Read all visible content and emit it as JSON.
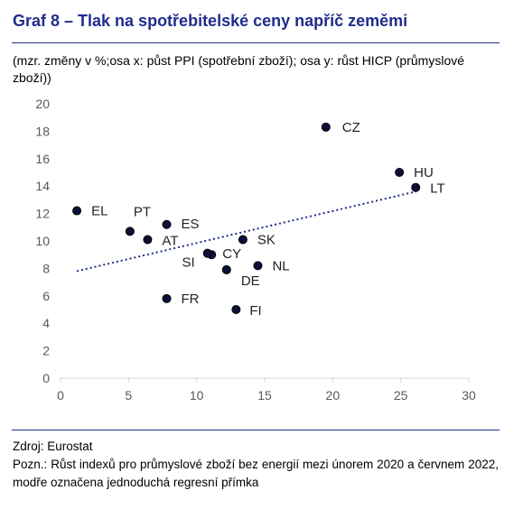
{
  "title": "Graf 8 – Tlak na spotřebitelské ceny napříč zeměmi",
  "subtitle": "(mzr. změny v %;osa x: půst PPI (spotřební zboží); osa y: růst HICP (průmyslové zboží))",
  "source": "Zdroj: Eurostat",
  "note": "Pozn.: Růst indexů pro průmyslové zboží bez energií mezi únorem 2020 a červnem 2022, modře označena jednoduchá regresní přímka",
  "colors": {
    "title": "#1f2d8c",
    "point": "#0b0f3a",
    "trend": "#1f2d8c",
    "axis": "#d9d9d9"
  },
  "chart_data": {
    "type": "scatter",
    "xlim": [
      0,
      30
    ],
    "ylim": [
      0,
      20
    ],
    "xticks": [
      "0",
      "5",
      "10",
      "15",
      "20",
      "25",
      "30"
    ],
    "yticks": [
      "0",
      "2",
      "4",
      "6",
      "8",
      "10",
      "12",
      "14",
      "16",
      "18",
      "20"
    ],
    "grid": false,
    "points": [
      {
        "label": "CZ",
        "x": 19.5,
        "y": 18.3
      },
      {
        "label": "HU",
        "x": 24.9,
        "y": 15.0
      },
      {
        "label": "LT",
        "x": 26.1,
        "y": 13.9
      },
      {
        "label": "EL",
        "x": 1.2,
        "y": 12.2
      },
      {
        "label": "PT",
        "x": 5.1,
        "y": 10.7
      },
      {
        "label": "ES",
        "x": 7.8,
        "y": 11.2
      },
      {
        "label": "AT",
        "x": 6.4,
        "y": 10.1
      },
      {
        "label": "SK",
        "x": 13.4,
        "y": 10.1
      },
      {
        "label": "CY",
        "x": 11.1,
        "y": 9.0
      },
      {
        "label": "SI",
        "x": 10.8,
        "y": 9.1
      },
      {
        "label": "NL",
        "x": 14.5,
        "y": 8.2
      },
      {
        "label": "DE",
        "x": 12.2,
        "y": 7.9
      },
      {
        "label": "FR",
        "x": 7.8,
        "y": 5.8
      },
      {
        "label": "FI",
        "x": 12.9,
        "y": 5.0
      }
    ],
    "trendline": {
      "x": [
        1.2,
        26.1
      ],
      "y": [
        7.8,
        13.6
      ]
    }
  }
}
